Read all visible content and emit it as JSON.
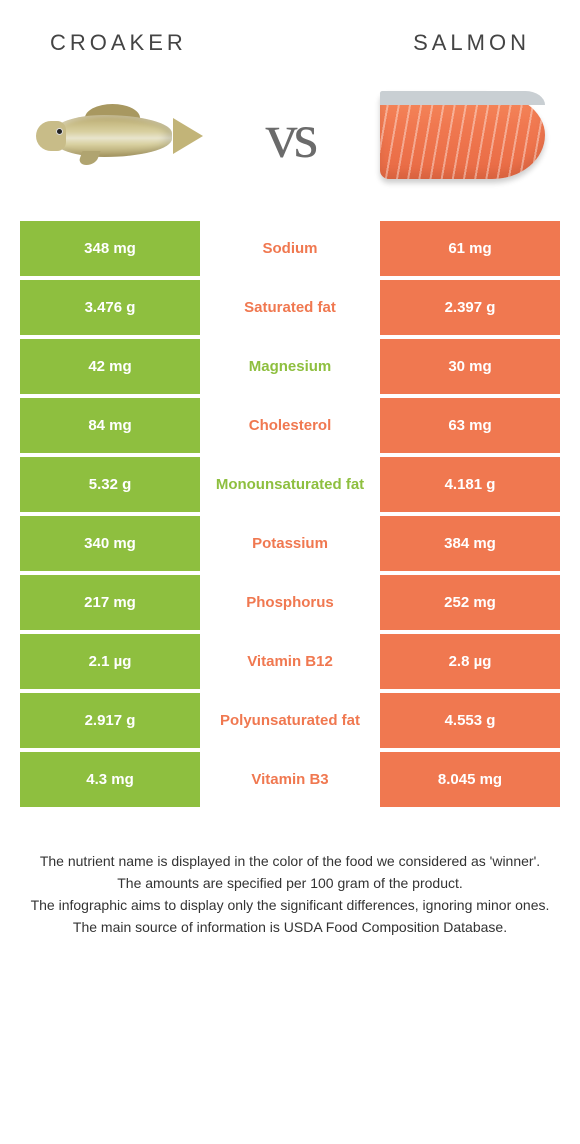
{
  "foods": {
    "left": {
      "name": "CROAKER",
      "band_color": "#8ebf3f"
    },
    "right": {
      "name": "SALMON",
      "band_color": "#f07850"
    }
  },
  "vs_label": "vs",
  "colors": {
    "left_winner_text": "#8ebf3f",
    "right_winner_text": "#f07850",
    "background": "#ffffff",
    "title_text": "#444444",
    "body_text": "#333333"
  },
  "rows": [
    {
      "nutrient": "Sodium",
      "left": "348 mg",
      "right": "61 mg",
      "winner": "right"
    },
    {
      "nutrient": "Saturated fat",
      "left": "3.476 g",
      "right": "2.397 g",
      "winner": "right"
    },
    {
      "nutrient": "Magnesium",
      "left": "42 mg",
      "right": "30 mg",
      "winner": "left"
    },
    {
      "nutrient": "Cholesterol",
      "left": "84 mg",
      "right": "63 mg",
      "winner": "right"
    },
    {
      "nutrient": "Monounsaturated fat",
      "left": "5.32 g",
      "right": "4.181 g",
      "winner": "left"
    },
    {
      "nutrient": "Potassium",
      "left": "340 mg",
      "right": "384 mg",
      "winner": "right"
    },
    {
      "nutrient": "Phosphorus",
      "left": "217 mg",
      "right": "252 mg",
      "winner": "right"
    },
    {
      "nutrient": "Vitamin B12",
      "left": "2.1 µg",
      "right": "2.8 µg",
      "winner": "right"
    },
    {
      "nutrient": "Polyunsaturated fat",
      "left": "2.917 g",
      "right": "4.553 g",
      "winner": "right"
    },
    {
      "nutrient": "Vitamin B3",
      "left": "4.3 mg",
      "right": "8.045 mg",
      "winner": "right"
    }
  ],
  "footer_lines": [
    "The nutrient name is displayed in the color of the food we considered as 'winner'.",
    "The amounts are specified per 100 gram of the product.",
    "The infographic aims to display only the significant differences, ignoring minor ones.",
    "The main source of information is USDA Food Composition Database."
  ]
}
